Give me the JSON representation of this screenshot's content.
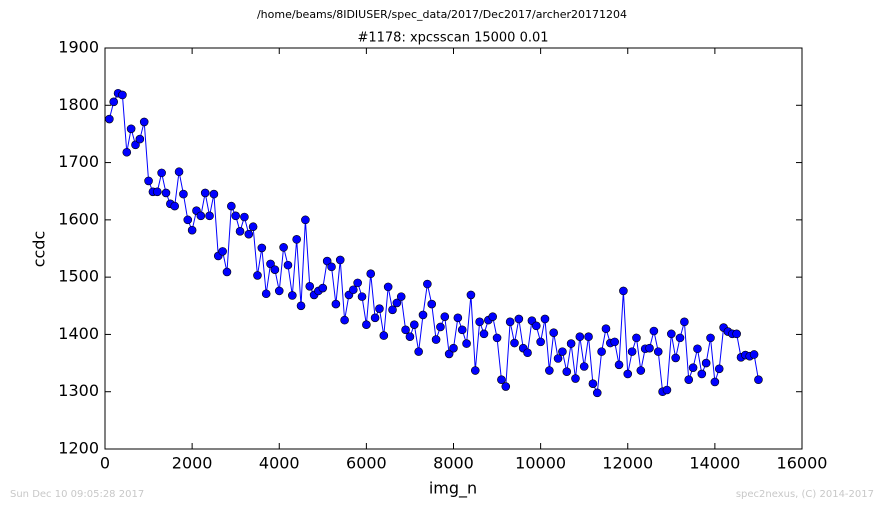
{
  "chart_data": {
    "type": "line",
    "suptitle": "/home/beams/8IDIUSER/spec_data/2017/Dec2017/archer20171204",
    "title": "#1178: xpcsscan 15000 0.01",
    "x_label": "img_n",
    "y_label": "ccdc",
    "footer_left": "Sun Dec 10 09:05:28 2017",
    "footer_right": "spec2nexus, (C) 2014-2017",
    "color": "#0000ff",
    "x": [
      100,
      200,
      300,
      400,
      500,
      600,
      700,
      800,
      900,
      1000,
      1100,
      1200,
      1300,
      1400,
      1500,
      1600,
      1700,
      1800,
      1900,
      2000,
      2100,
      2200,
      2300,
      2400,
      2500,
      2600,
      2700,
      2800,
      2900,
      3000,
      3100,
      3200,
      3300,
      3400,
      3500,
      3600,
      3700,
      3800,
      3900,
      4000,
      4100,
      4200,
      4300,
      4400,
      4500,
      4600,
      4700,
      4800,
      4900,
      5000,
      5100,
      5200,
      5300,
      5400,
      5500,
      5600,
      5700,
      5800,
      5900,
      6000,
      6100,
      6200,
      6300,
      6400,
      6500,
      6600,
      6700,
      6800,
      6900,
      7000,
      7100,
      7200,
      7300,
      7400,
      7500,
      7600,
      7700,
      7800,
      7900,
      8000,
      8100,
      8200,
      8300,
      8400,
      8500,
      8600,
      8700,
      8800,
      8900,
      9000,
      9100,
      9200,
      9300,
      9400,
      9500,
      9600,
      9700,
      9800,
      9900,
      10000,
      10100,
      10200,
      10300,
      10400,
      10500,
      10600,
      10700,
      10800,
      10900,
      11000,
      11100,
      11200,
      11300,
      11400,
      11500,
      11600,
      11700,
      11800,
      11900,
      12000,
      12100,
      12200,
      12300,
      12400,
      12500,
      12600,
      12700,
      12800,
      12900,
      13000,
      13100,
      13200,
      13300,
      13400,
      13500,
      13600,
      13700,
      13800,
      13900,
      14000,
      14100,
      14200,
      14300,
      14400,
      14500,
      14600,
      14700,
      14800,
      14900,
      15000
    ],
    "values": [
      1776,
      1806,
      1821,
      1818,
      1718,
      1759,
      1731,
      1741,
      1771,
      1668,
      1649,
      1649,
      1682,
      1647,
      1628,
      1624,
      1684,
      1645,
      1600,
      1582,
      1616,
      1607,
      1647,
      1607,
      1645,
      1537,
      1545,
      1509,
      1624,
      1607,
      1580,
      1605,
      1575,
      1588,
      1503,
      1551,
      1471,
      1523,
      1513,
      1476,
      1552,
      1521,
      1468,
      1566,
      1450,
      1600,
      1484,
      1469,
      1476,
      1481,
      1528,
      1518,
      1453,
      1530,
      1425,
      1469,
      1478,
      1490,
      1466,
      1417,
      1506,
      1429,
      1445,
      1398,
      1483,
      1443,
      1455,
      1466,
      1408,
      1396,
      1417,
      1370,
      1434,
      1488,
      1453,
      1391,
      1413,
      1431,
      1366,
      1376,
      1429,
      1408,
      1384,
      1469,
      1337,
      1422,
      1401,
      1425,
      1431,
      1394,
      1321,
      1309,
      1422,
      1385,
      1427,
      1376,
      1368,
      1424,
      1415,
      1387,
      1427,
      1337,
      1403,
      1358,
      1370,
      1335,
      1384,
      1323,
      1396,
      1344,
      1396,
      1314,
      1298,
      1370,
      1410,
      1385,
      1387,
      1347,
      1476,
      1331,
      1370,
      1394,
      1337,
      1375,
      1376,
      1406,
      1370,
      1300,
      1303,
      1401,
      1359,
      1394,
      1422,
      1321,
      1342,
      1375,
      1331,
      1350,
      1394,
      1317,
      1340,
      1412,
      1405,
      1401,
      1401,
      1360,
      1364,
      1362,
      1365,
      1321
    ],
    "xlim": [
      0,
      16000
    ],
    "xticks": [
      0,
      2000,
      4000,
      6000,
      8000,
      10000,
      12000,
      14000,
      16000
    ],
    "ylim": [
      1200,
      1900
    ],
    "yticks": [
      1200,
      1300,
      1400,
      1500,
      1600,
      1700,
      1800,
      1900
    ]
  }
}
